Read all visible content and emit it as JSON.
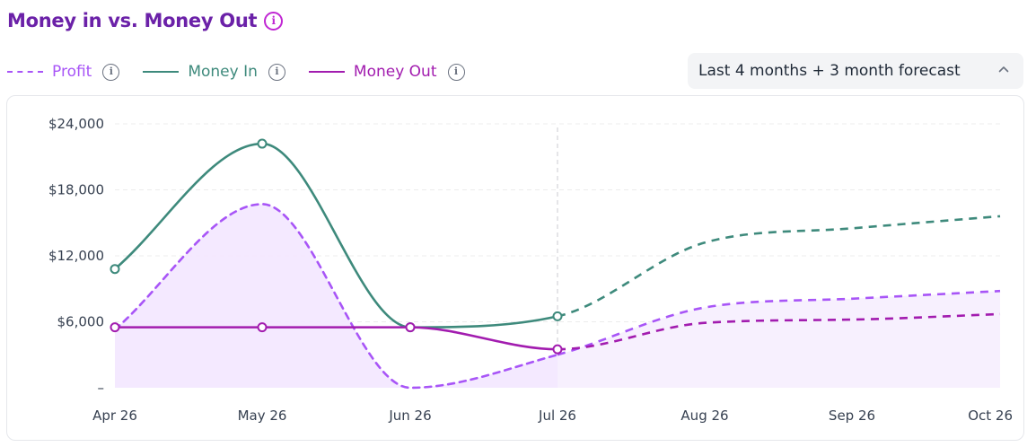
{
  "header": {
    "title": "Money in vs. Money Out",
    "info_icon": "info-icon"
  },
  "legend": {
    "items": [
      {
        "label": "Profit",
        "color": "#a855f7",
        "style": "dashed"
      },
      {
        "label": "Money In",
        "color": "#3e8a7c",
        "style": "solid"
      },
      {
        "label": "Money Out",
        "color": "#a21caf",
        "style": "solid"
      }
    ]
  },
  "range_select": {
    "label": "Last 4 months + 3 month forecast",
    "icon": "chevron-up-icon"
  },
  "chart_data": {
    "type": "line",
    "categories": [
      "Apr 26",
      "May 26",
      "Jun 26",
      "Jul 26",
      "Aug 26",
      "Sep 26",
      "Oct 26"
    ],
    "y_ticks": [
      "–",
      "$6,000",
      "$12,000",
      "$18,000",
      "$24,000"
    ],
    "ylim": [
      0,
      24000
    ],
    "grid": true,
    "forecast_start": "Jul 26",
    "series": [
      {
        "name": "Money In",
        "color": "#3e8a7c",
        "values": [
          10800,
          22200,
          5500,
          6500,
          13200,
          14500,
          15600
        ]
      },
      {
        "name": "Money Out",
        "color": "#a21caf",
        "values": [
          5500,
          5500,
          5500,
          3500,
          5900,
          6200,
          6700
        ]
      },
      {
        "name": "Profit",
        "color": "#a855f7",
        "dashed": true,
        "area_color": "#f3e8ff",
        "values": [
          5300,
          16700,
          0,
          3000,
          7300,
          8100,
          8800
        ]
      }
    ]
  }
}
